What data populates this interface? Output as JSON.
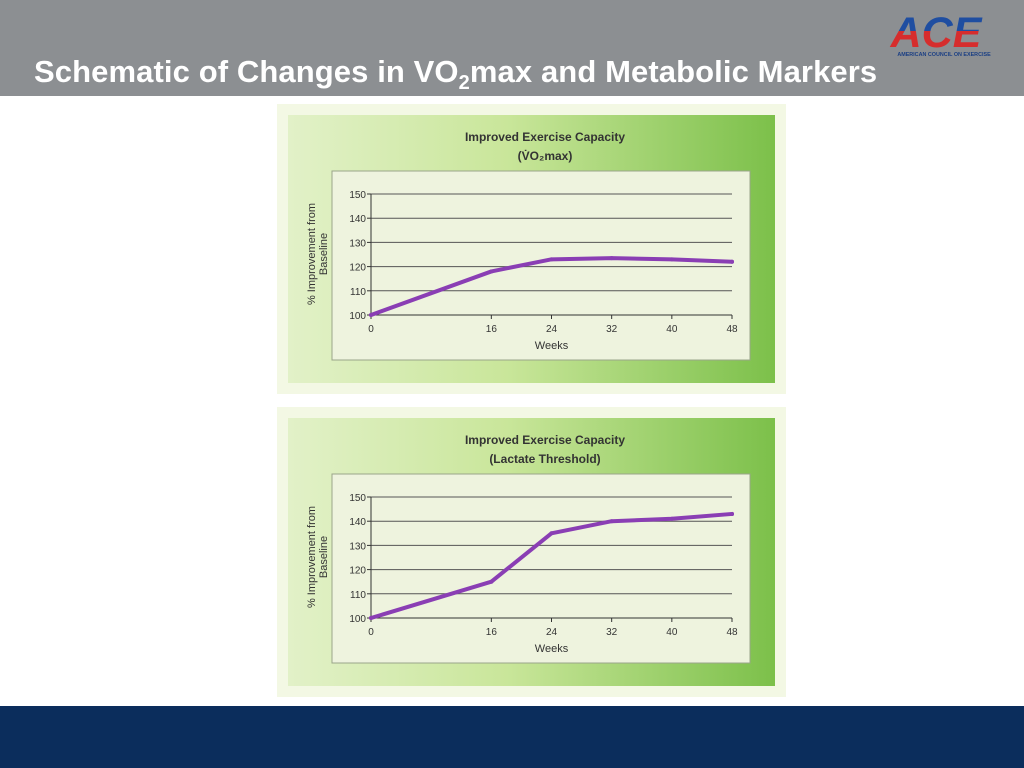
{
  "slide": {
    "title_prefix": "Schematic of Changes in VO",
    "title_sub": "2",
    "title_suffix": "max and Metabolic Markers",
    "logo_text": "ACE",
    "logo_caption": "AMERICAN COUNCIL ON EXERCISE"
  },
  "colors": {
    "header_bg": "#8c8f92",
    "footer_bg": "#0b2d5c",
    "logo_blue": "#1f4ea1",
    "logo_red": "#d62d2d",
    "panel_green": "#7cc04a",
    "plot_bg": "#eef3de",
    "line": "#8a3eb4"
  },
  "chart_data": [
    {
      "type": "line",
      "title": "Improved Exercise Capacity",
      "subtitle": "(V̇O₂max)",
      "xlabel": "Weeks",
      "ylabel": "% Improvement from Baseline",
      "x_ticks": [
        0,
        16,
        24,
        32,
        40,
        48
      ],
      "y_ticks": [
        100,
        110,
        120,
        130,
        140,
        150
      ],
      "xlim": [
        0,
        48
      ],
      "ylim": [
        100,
        150
      ],
      "grid": true,
      "series": [
        {
          "x": [
            0,
            16,
            24,
            32,
            40,
            48
          ],
          "y": [
            100,
            118,
            123,
            123.5,
            123,
            122
          ]
        }
      ]
    },
    {
      "type": "line",
      "title": "Improved Exercise Capacity",
      "subtitle": "(Lactate Threshold)",
      "xlabel": "Weeks",
      "ylabel": "% Improvement from Baseline",
      "x_ticks": [
        0,
        16,
        24,
        32,
        40,
        48
      ],
      "y_ticks": [
        100,
        110,
        120,
        130,
        140,
        150
      ],
      "xlim": [
        0,
        48
      ],
      "ylim": [
        100,
        150
      ],
      "grid": true,
      "series": [
        {
          "x": [
            0,
            16,
            24,
            32,
            40,
            48
          ],
          "y": [
            100,
            115,
            135,
            140,
            141,
            143
          ]
        }
      ]
    }
  ]
}
